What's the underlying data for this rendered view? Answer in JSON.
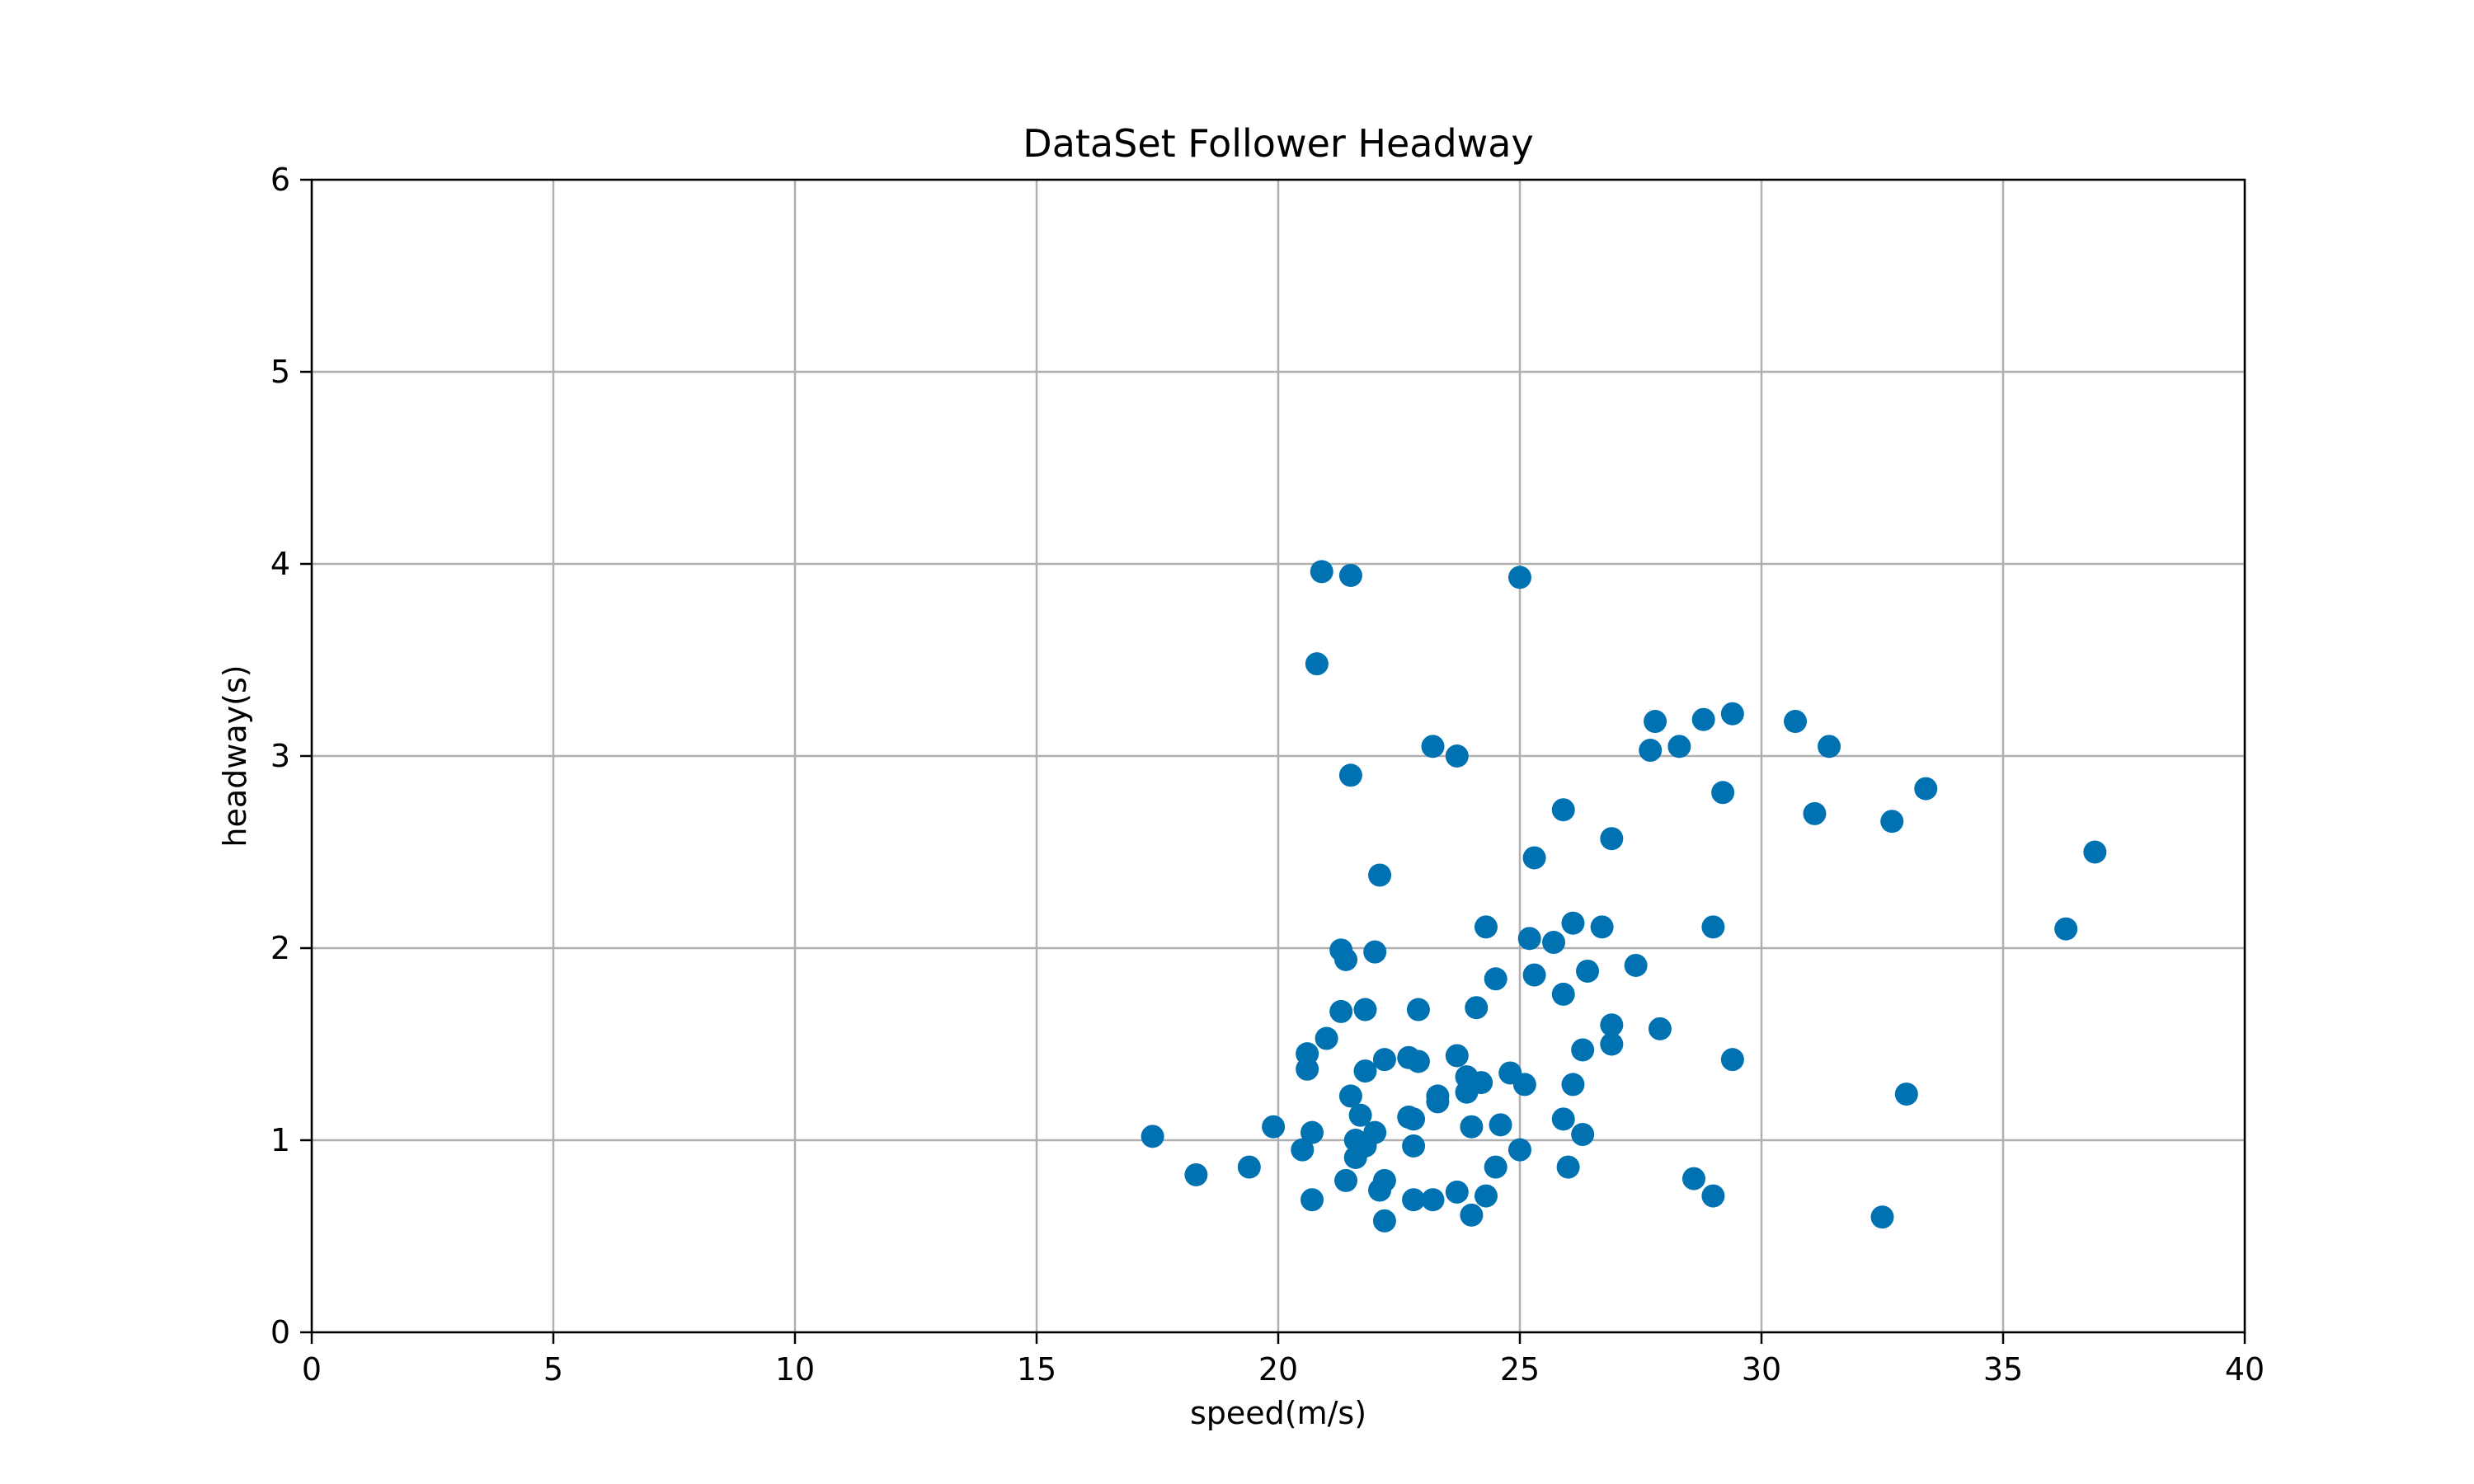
{
  "chart_data": {
    "type": "scatter",
    "title": "DataSet Follower Headway",
    "xlabel": "speed(m/s)",
    "ylabel": "headway(s)",
    "xlim": [
      0,
      40
    ],
    "ylim": [
      0,
      6
    ],
    "xticks": [
      0,
      5,
      10,
      15,
      20,
      25,
      30,
      35,
      40
    ],
    "yticks": [
      0,
      1,
      2,
      3,
      4,
      5,
      6
    ],
    "grid": true,
    "marker_color": "#0072b2",
    "series": [
      {
        "points": [
          [
            17.4,
            1.02
          ],
          [
            18.3,
            0.82
          ],
          [
            19.4,
            0.86
          ],
          [
            19.9,
            1.07
          ],
          [
            20.5,
            0.95
          ],
          [
            20.6,
            1.37
          ],
          [
            20.6,
            1.45
          ],
          [
            20.7,
            1.04
          ],
          [
            20.7,
            0.69
          ],
          [
            20.8,
            3.48
          ],
          [
            20.9,
            3.96
          ],
          [
            21.0,
            1.53
          ],
          [
            21.3,
            1.99
          ],
          [
            21.4,
            1.94
          ],
          [
            21.3,
            1.67
          ],
          [
            21.4,
            0.79
          ],
          [
            21.5,
            3.94
          ],
          [
            21.5,
            2.9
          ],
          [
            21.5,
            1.23
          ],
          [
            21.6,
            1.0
          ],
          [
            21.6,
            0.91
          ],
          [
            21.7,
            1.13
          ],
          [
            21.8,
            0.97
          ],
          [
            21.8,
            1.68
          ],
          [
            21.8,
            1.36
          ],
          [
            22.0,
            1.98
          ],
          [
            22.0,
            1.04
          ],
          [
            22.1,
            2.38
          ],
          [
            22.1,
            0.74
          ],
          [
            22.2,
            0.79
          ],
          [
            22.2,
            0.58
          ],
          [
            22.2,
            1.42
          ],
          [
            22.7,
            1.43
          ],
          [
            22.7,
            1.12
          ],
          [
            22.8,
            1.11
          ],
          [
            22.8,
            0.97
          ],
          [
            22.8,
            0.69
          ],
          [
            22.9,
            1.41
          ],
          [
            22.9,
            1.68
          ],
          [
            23.2,
            3.05
          ],
          [
            23.2,
            0.69
          ],
          [
            23.3,
            1.23
          ],
          [
            23.3,
            1.2
          ],
          [
            23.7,
            3.0
          ],
          [
            23.7,
            1.44
          ],
          [
            23.7,
            0.73
          ],
          [
            23.9,
            1.33
          ],
          [
            23.9,
            1.25
          ],
          [
            24.0,
            1.07
          ],
          [
            24.0,
            0.61
          ],
          [
            24.1,
            1.69
          ],
          [
            24.2,
            1.3
          ],
          [
            24.3,
            2.11
          ],
          [
            24.3,
            0.71
          ],
          [
            24.5,
            1.84
          ],
          [
            24.5,
            0.86
          ],
          [
            24.6,
            1.08
          ],
          [
            24.8,
            1.35
          ],
          [
            25.0,
            3.93
          ],
          [
            25.0,
            0.95
          ],
          [
            25.1,
            1.29
          ],
          [
            25.2,
            2.05
          ],
          [
            25.3,
            2.47
          ],
          [
            25.3,
            1.86
          ],
          [
            25.7,
            2.03
          ],
          [
            25.9,
            2.72
          ],
          [
            25.9,
            1.76
          ],
          [
            25.9,
            1.11
          ],
          [
            26.0,
            0.86
          ],
          [
            26.1,
            2.13
          ],
          [
            26.1,
            1.29
          ],
          [
            26.3,
            1.47
          ],
          [
            26.3,
            1.03
          ],
          [
            26.4,
            1.88
          ],
          [
            26.7,
            2.11
          ],
          [
            26.9,
            2.57
          ],
          [
            26.9,
            1.6
          ],
          [
            26.9,
            1.5
          ],
          [
            27.4,
            1.91
          ],
          [
            27.7,
            3.03
          ],
          [
            27.8,
            3.18
          ],
          [
            27.9,
            1.58
          ],
          [
            28.3,
            3.05
          ],
          [
            28.6,
            0.8
          ],
          [
            28.8,
            3.19
          ],
          [
            29.0,
            2.11
          ],
          [
            29.0,
            0.71
          ],
          [
            29.2,
            2.81
          ],
          [
            29.4,
            3.22
          ],
          [
            29.4,
            1.42
          ],
          [
            30.7,
            3.18
          ],
          [
            31.1,
            2.7
          ],
          [
            31.4,
            3.05
          ],
          [
            32.5,
            0.6
          ],
          [
            32.7,
            2.66
          ],
          [
            33.0,
            1.24
          ],
          [
            33.4,
            2.83
          ],
          [
            36.3,
            2.1
          ],
          [
            36.9,
            2.5
          ]
        ]
      }
    ]
  }
}
